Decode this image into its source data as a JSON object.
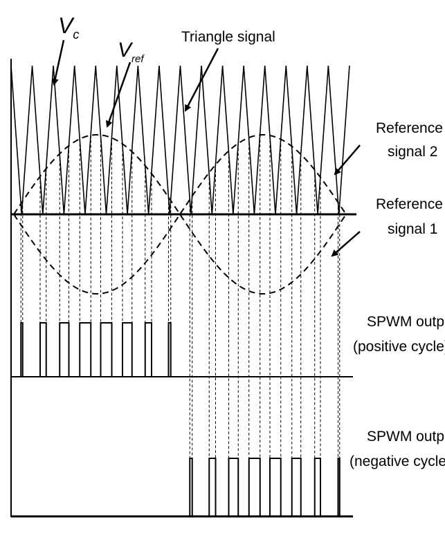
{
  "labels": {
    "vc": {
      "symbol": "V",
      "subscript": "c"
    },
    "vref": {
      "symbol": "V",
      "subscript": "ref"
    },
    "triangle": "Triangle signal",
    "ref2": [
      "Reference",
      "signal 2"
    ],
    "ref1": [
      "Reference",
      "signal 1"
    ],
    "positive": [
      "SPWM output",
      "(positive cycle)"
    ],
    "negative": [
      "SPWM output",
      "(negative cycle)"
    ]
  }
}
